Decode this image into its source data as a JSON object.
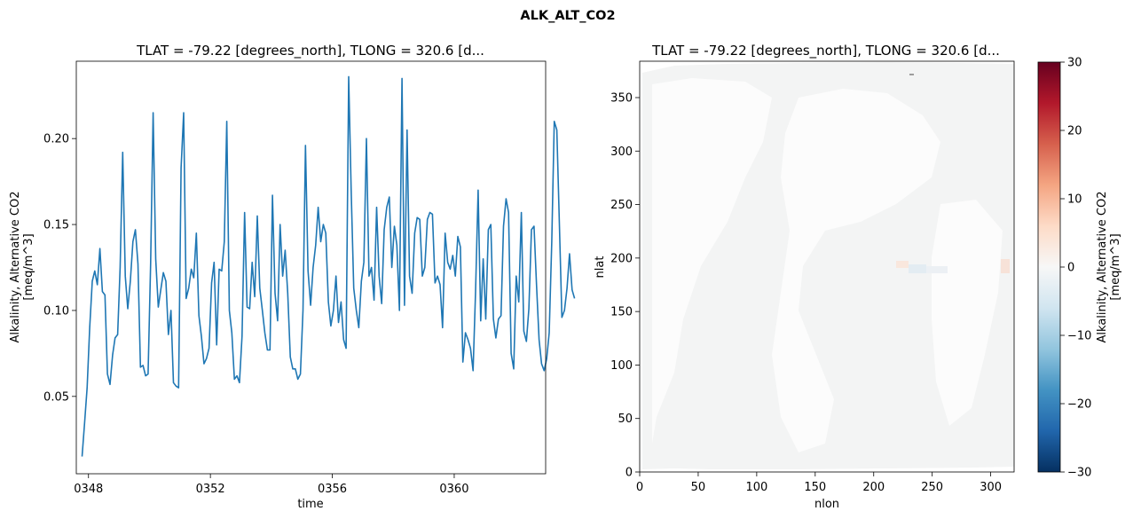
{
  "suptitle": "ALK_ALT_CO2",
  "chart_data": [
    {
      "type": "line",
      "title": "TLAT = -79.22 [degrees_north], TLONG = 320.6 [d...",
      "xlabel": "time",
      "ylabel_line1": "Alkalinity, Alternative CO2",
      "ylabel_line2": "[meq/m^3]",
      "xlim": [
        347.6,
        363.0
      ],
      "ylim": [
        0.005,
        0.245
      ],
      "x_tick_values": [
        348,
        352,
        356,
        360
      ],
      "x_ticks": [
        "0348",
        "0352",
        "0356",
        "0360"
      ],
      "y_tick_values": [
        0.05,
        0.1,
        0.15,
        0.2
      ],
      "y_ticks": [
        "0.05",
        "0.10",
        "0.15",
        "0.20"
      ],
      "line_color": "#1f77b4",
      "series": [
        {
          "x0": 347.79,
          "dx": 0.0833,
          "values": [
            0.015,
            0.035,
            0.055,
            0.09,
            0.117,
            0.123,
            0.115,
            0.136,
            0.111,
            0.109,
            0.063,
            0.057,
            0.074,
            0.084,
            0.086,
            0.125,
            0.192,
            0.12,
            0.101,
            0.117,
            0.14,
            0.147,
            0.127,
            0.067,
            0.068,
            0.062,
            0.063,
            0.128,
            0.215,
            0.13,
            0.102,
            0.112,
            0.122,
            0.117,
            0.086,
            0.1,
            0.058,
            0.056,
            0.055,
            0.183,
            0.215,
            0.107,
            0.113,
            0.124,
            0.119,
            0.145,
            0.097,
            0.085,
            0.069,
            0.072,
            0.078,
            0.116,
            0.128,
            0.08,
            0.124,
            0.123,
            0.14,
            0.21,
            0.1,
            0.087,
            0.06,
            0.062,
            0.058,
            0.085,
            0.157,
            0.102,
            0.101,
            0.128,
            0.108,
            0.155,
            0.113,
            0.1,
            0.087,
            0.077,
            0.077,
            0.167,
            0.11,
            0.094,
            0.15,
            0.12,
            0.135,
            0.11,
            0.073,
            0.066,
            0.066,
            0.06,
            0.063,
            0.1,
            0.196,
            0.123,
            0.103,
            0.125,
            0.138,
            0.16,
            0.14,
            0.15,
            0.145,
            0.105,
            0.091,
            0.1,
            0.12,
            0.093,
            0.105,
            0.083,
            0.078,
            0.236,
            0.17,
            0.113,
            0.1,
            0.09,
            0.117,
            0.128,
            0.2,
            0.12,
            0.125,
            0.106,
            0.16,
            0.12,
            0.104,
            0.147,
            0.16,
            0.166,
            0.125,
            0.149,
            0.138,
            0.1,
            0.235,
            0.103,
            0.205,
            0.12,
            0.11,
            0.145,
            0.154,
            0.153,
            0.12,
            0.125,
            0.153,
            0.157,
            0.156,
            0.116,
            0.12,
            0.115,
            0.09,
            0.145,
            0.128,
            0.124,
            0.132,
            0.12,
            0.143,
            0.137,
            0.07,
            0.087,
            0.083,
            0.078,
            0.065,
            0.111,
            0.17,
            0.094,
            0.13,
            0.095,
            0.147,
            0.15,
            0.095,
            0.084,
            0.095,
            0.097,
            0.149,
            0.165,
            0.157,
            0.075,
            0.066,
            0.12,
            0.105,
            0.157,
            0.088,
            0.082,
            0.101,
            0.147,
            0.149,
            0.115,
            0.083,
            0.069,
            0.065,
            0.072,
            0.087,
            0.14,
            0.21,
            0.205,
            0.15,
            0.096,
            0.1,
            0.113,
            0.133,
            0.112,
            0.107
          ]
        }
      ]
    },
    {
      "type": "heatmap",
      "title": "TLAT = -79.22 [degrees_north], TLONG = 320.6 [d...",
      "xlabel": "nlon",
      "ylabel": "nlat",
      "xlim": [
        0,
        320
      ],
      "ylim": [
        0,
        384
      ],
      "x_tick_values": [
        0,
        50,
        100,
        150,
        200,
        250,
        300
      ],
      "x_ticks": [
        "0",
        "50",
        "100",
        "150",
        "200",
        "250",
        "300"
      ],
      "y_tick_values": [
        0,
        50,
        100,
        150,
        200,
        250,
        300,
        350
      ],
      "y_ticks": [
        "0",
        "50",
        "100",
        "150",
        "200",
        "250",
        "300",
        "350"
      ],
      "colormap": "RdBu_r",
      "field_color": "#f3f4f4",
      "colorbar": {
        "range": [
          -30,
          30
        ],
        "tick_values": [
          30,
          20,
          10,
          0,
          -10,
          -20,
          -30
        ],
        "ticks": [
          "30",
          "20",
          "10",
          "0",
          "−10",
          "−20",
          "−30"
        ],
        "label_line1": "Alkalinity, Alternative CO2",
        "label_line2": "[meq/m^3]",
        "stops": [
          "#67001f",
          "#b2182b",
          "#d6604d",
          "#f4a582",
          "#fddbc7",
          "#f7f7f7",
          "#d1e5f0",
          "#92c5de",
          "#4393c3",
          "#2166ac",
          "#053061"
        ]
      }
    }
  ]
}
